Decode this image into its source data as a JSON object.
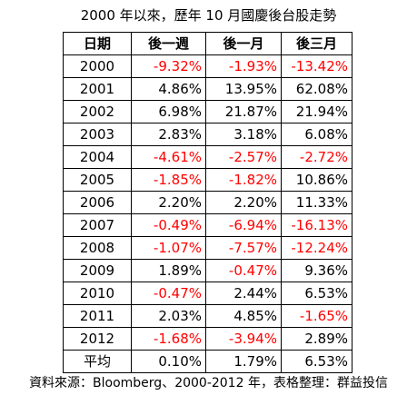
{
  "title": "2000 年以來，歷年 10 月國慶後台股走勢",
  "table": {
    "headers": [
      "日期",
      "後一週",
      "後一月",
      "後三月"
    ],
    "rows": [
      {
        "label": "2000",
        "week": "-9.32%",
        "month": "-1.93%",
        "three_month": "-13.42%"
      },
      {
        "label": "2001",
        "week": "4.86%",
        "month": "13.95%",
        "three_month": "62.08%"
      },
      {
        "label": "2002",
        "week": "6.98%",
        "month": "21.87%",
        "three_month": "21.94%"
      },
      {
        "label": "2003",
        "week": "2.83%",
        "month": "3.18%",
        "three_month": "6.08%"
      },
      {
        "label": "2004",
        "week": "-4.61%",
        "month": "-2.57%",
        "three_month": "-2.72%"
      },
      {
        "label": "2005",
        "week": "-1.85%",
        "month": "-1.82%",
        "three_month": "10.86%"
      },
      {
        "label": "2006",
        "week": "2.20%",
        "month": "2.20%",
        "three_month": "11.33%"
      },
      {
        "label": "2007",
        "week": "-0.49%",
        "month": "-6.94%",
        "three_month": "-16.13%"
      },
      {
        "label": "2008",
        "week": "-1.07%",
        "month": "-7.57%",
        "three_month": "-12.24%"
      },
      {
        "label": "2009",
        "week": "1.89%",
        "month": "-0.47%",
        "three_month": "9.36%"
      },
      {
        "label": "2010",
        "week": "-0.47%",
        "month": "2.44%",
        "three_month": "6.53%"
      },
      {
        "label": "2011",
        "week": "2.03%",
        "month": "4.85%",
        "three_month": "-1.65%"
      },
      {
        "label": "2012",
        "week": "-1.68%",
        "month": "-3.94%",
        "three_month": "2.89%"
      },
      {
        "label": "平均",
        "week": "0.10%",
        "month": "1.79%",
        "three_month": "6.53%"
      }
    ]
  },
  "source": "資料來源：Bloomberg、2000-2012 年，表格整理：群益投信",
  "colors": {
    "negative": "#ff0000",
    "positive": "#000000",
    "border": "#000000"
  }
}
